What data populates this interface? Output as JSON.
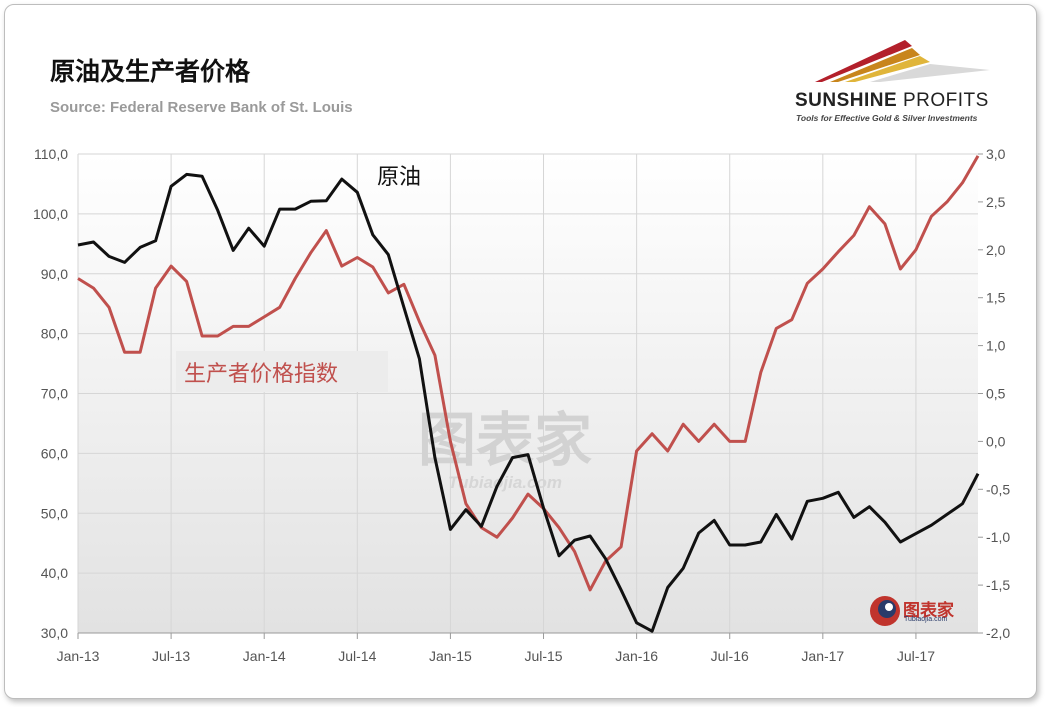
{
  "title": "原油及生产者价格",
  "source": "Source: Federal Reserve Bank of St. Louis",
  "logo": {
    "brand_bold": "SUNSHINE",
    "brand_thin": "PROFITS",
    "tagline": "Tools for Effective Gold & Silver Investments"
  },
  "watermark": {
    "center": "图表家",
    "center_sub": "Tubiaojia.com",
    "badge": "图表家",
    "badge_sub": "Tubiaojia.com"
  },
  "colors": {
    "oil": "#111111",
    "ppi": "#c0504d",
    "plot_bg_top": "#ffffff",
    "plot_bg_bottom": "#e4e4e4",
    "grid": "#d6d6d6"
  },
  "chart_data": {
    "type": "line",
    "title": "原油及生产者价格",
    "subtitle": "Source: Federal Reserve Bank of St. Louis",
    "x_tick_labels": [
      "Jan-13",
      "Jul-13",
      "Jan-14",
      "Jul-14",
      "Jan-15",
      "Jul-15",
      "Jan-16",
      "Jul-16",
      "Jan-17",
      "Jul-17"
    ],
    "x": [
      "2013-01",
      "2013-02",
      "2013-03",
      "2013-04",
      "2013-05",
      "2013-06",
      "2013-07",
      "2013-08",
      "2013-09",
      "2013-10",
      "2013-11",
      "2013-12",
      "2014-01",
      "2014-02",
      "2014-03",
      "2014-04",
      "2014-05",
      "2014-06",
      "2014-07",
      "2014-08",
      "2014-09",
      "2014-10",
      "2014-11",
      "2014-12",
      "2015-01",
      "2015-02",
      "2015-03",
      "2015-04",
      "2015-05",
      "2015-06",
      "2015-07",
      "2015-08",
      "2015-09",
      "2015-10",
      "2015-11",
      "2015-12",
      "2016-01",
      "2016-02",
      "2016-03",
      "2016-04",
      "2016-05",
      "2016-06",
      "2016-07",
      "2016-08",
      "2016-09",
      "2016-10",
      "2016-11",
      "2016-12",
      "2017-01",
      "2017-02",
      "2017-03",
      "2017-04",
      "2017-05",
      "2017-06",
      "2017-07",
      "2017-08",
      "2017-09",
      "2017-10",
      "2017-11"
    ],
    "y_left": {
      "lim": [
        30,
        110
      ],
      "ticks": [
        "110,0",
        "100,0",
        "90,0",
        "80,0",
        "70,0",
        "60,0",
        "50,0",
        "40,0",
        "30,0"
      ]
    },
    "y_right": {
      "lim": [
        -2.0,
        3.0
      ],
      "ticks": [
        "3,0",
        "2,5",
        "2,0",
        "1,5",
        "1,0",
        "0,5",
        "0,0",
        "-0,5",
        "-1,0",
        "-1,5",
        "-2,0"
      ]
    },
    "grid": true,
    "legend": "inline labels",
    "series": [
      {
        "name": "原油",
        "axis": "left",
        "values": [
          94.8,
          95.3,
          92.9,
          91.9,
          94.4,
          95.5,
          104.6,
          106.6,
          106.3,
          100.6,
          93.9,
          97.6,
          94.6,
          100.8,
          100.8,
          102.1,
          102.2,
          105.8,
          103.6,
          96.5,
          93.2,
          84.4,
          75.8,
          59.3,
          47.3,
          50.6,
          47.8,
          54.5,
          59.3,
          59.8,
          50.9,
          42.9,
          45.5,
          46.2,
          42.4,
          37.2,
          31.7,
          30.3,
          37.6,
          40.8,
          46.7,
          48.8,
          44.7,
          44.7,
          45.2,
          49.8,
          45.7,
          52.0,
          52.5,
          53.5,
          49.3,
          51.1,
          48.5,
          45.2,
          46.6,
          48.0,
          49.8,
          51.6,
          56.6
        ]
      },
      {
        "name": "生产者价格指数",
        "axis": "right",
        "values": [
          1.7,
          1.6,
          1.4,
          0.93,
          0.93,
          1.6,
          1.83,
          1.67,
          1.1,
          1.1,
          1.2,
          1.2,
          1.3,
          1.4,
          1.7,
          1.97,
          2.2,
          1.83,
          1.92,
          1.82,
          1.55,
          1.64,
          1.25,
          0.9,
          0.0,
          -0.65,
          -0.9,
          -1.0,
          -0.8,
          -0.55,
          -0.7,
          -0.9,
          -1.15,
          -1.55,
          -1.25,
          -1.1,
          -0.1,
          0.08,
          -0.1,
          0.18,
          0.0,
          0.18,
          0.0,
          0.0,
          0.72,
          1.18,
          1.27,
          1.65,
          1.8,
          1.98,
          2.15,
          2.45,
          2.27,
          1.8,
          2.0,
          2.35,
          2.5,
          2.7,
          2.98
        ]
      }
    ]
  }
}
